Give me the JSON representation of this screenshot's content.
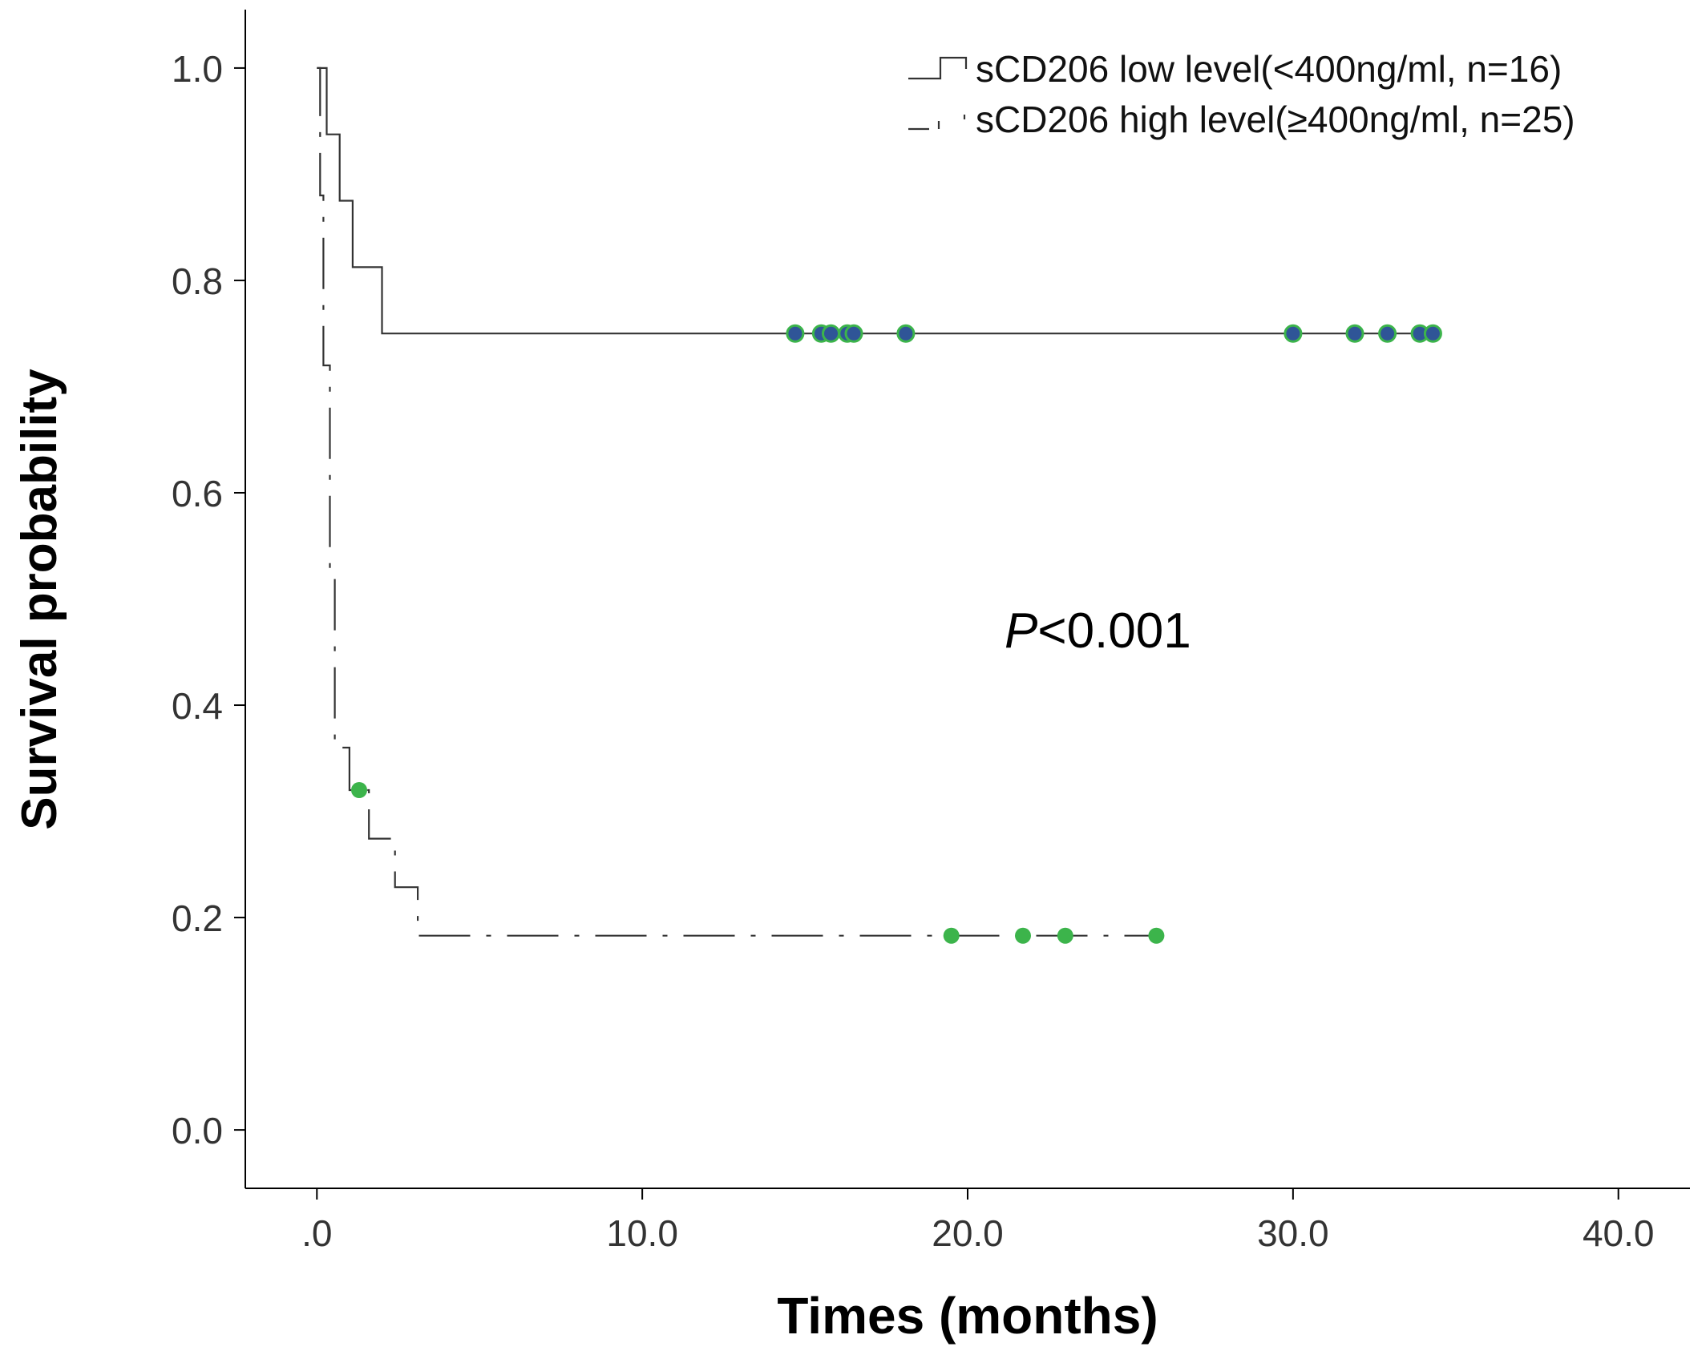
{
  "chart_data": {
    "type": "line",
    "subtype": "kaplan-meier",
    "title": "",
    "xlabel": "Times (months)",
    "ylabel": "Survival probability",
    "xlim": [
      -2.2,
      42.2
    ],
    "ylim": [
      -0.055,
      1.055
    ],
    "x_ticks": [
      0,
      10,
      20,
      30,
      40
    ],
    "x_tick_labels": [
      ".0",
      "10.0",
      "20.0",
      "30.0",
      "40.0"
    ],
    "y_ticks": [
      0,
      0.2,
      0.4,
      0.6,
      0.8,
      1.0
    ],
    "y_tick_labels": [
      "0.0",
      "0.2",
      "0.4",
      "0.6",
      "0.8",
      "1.0"
    ],
    "grid": false,
    "legend_position": "top-right",
    "annotation": {
      "italic": "P",
      "text": "<0.001"
    },
    "series": [
      {
        "name": "sCD206 low level(<400ng/ml, n=16)",
        "line_style": "solid",
        "color": "#333333",
        "censor_color": "#2f5597",
        "censor_edge": "#3cb44b",
        "steps": [
          [
            0,
            1.0
          ],
          [
            0.3,
            0.9375
          ],
          [
            0.7,
            0.875
          ],
          [
            1.1,
            0.8125
          ],
          [
            2.0,
            0.75
          ],
          [
            34.4,
            0.75
          ]
        ],
        "censored": [
          [
            14.7,
            0.75
          ],
          [
            15.5,
            0.75
          ],
          [
            15.8,
            0.75
          ],
          [
            16.3,
            0.75
          ],
          [
            16.5,
            0.75
          ],
          [
            18.1,
            0.75
          ],
          [
            30.0,
            0.75
          ],
          [
            31.9,
            0.75
          ],
          [
            32.9,
            0.75
          ],
          [
            33.9,
            0.75
          ],
          [
            34.3,
            0.75
          ]
        ]
      },
      {
        "name": "sCD206 high level(≥400ng/ml, n=25)",
        "line_style": "dash-dot",
        "color": "#333333",
        "censor_color": "#3cb44b",
        "steps": [
          [
            0,
            1.0
          ],
          [
            0.1,
            0.88
          ],
          [
            0.2,
            0.72
          ],
          [
            0.4,
            0.52
          ],
          [
            0.55,
            0.36
          ],
          [
            1.0,
            0.32
          ],
          [
            1.6,
            0.2743
          ],
          [
            2.4,
            0.2286
          ],
          [
            3.1,
            0.1829
          ],
          [
            25.8,
            0.1829
          ]
        ],
        "censored": [
          [
            1.3,
            0.32
          ],
          [
            19.5,
            0.1829
          ],
          [
            21.7,
            0.1829
          ],
          [
            23.0,
            0.1829
          ],
          [
            25.8,
            0.1829
          ]
        ]
      }
    ]
  }
}
